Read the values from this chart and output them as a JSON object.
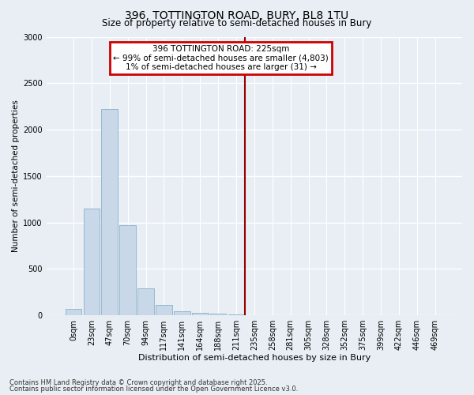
{
  "title1": "396, TOTTINGTON ROAD, BURY, BL8 1TU",
  "title2": "Size of property relative to semi-detached houses in Bury",
  "xlabel": "Distribution of semi-detached houses by size in Bury",
  "ylabel": "Number of semi-detached properties",
  "footnote1": "Contains HM Land Registry data © Crown copyright and database right 2025.",
  "footnote2": "Contains public sector information licensed under the Open Government Licence v3.0.",
  "annotation_title": "396 TOTTINGTON ROAD: 225sqm",
  "annotation_line1": "← 99% of semi-detached houses are smaller (4,803)",
  "annotation_line2": "1% of semi-detached houses are larger (31) →",
  "bar_labels": [
    "0sqm",
    "23sqm",
    "47sqm",
    "70sqm",
    "94sqm",
    "117sqm",
    "141sqm",
    "164sqm",
    "188sqm",
    "211sqm",
    "235sqm",
    "258sqm",
    "281sqm",
    "305sqm",
    "328sqm",
    "352sqm",
    "375sqm",
    "399sqm",
    "422sqm",
    "446sqm",
    "469sqm"
  ],
  "bar_values": [
    70,
    1150,
    2225,
    975,
    290,
    110,
    47,
    30,
    18,
    10,
    0,
    0,
    0,
    0,
    0,
    0,
    0,
    0,
    0,
    0,
    0
  ],
  "bar_color": "#c8d8e8",
  "bar_edge_color": "#8ab0cc",
  "vline_x": 10.0,
  "vline_color": "#990000",
  "ylim": [
    0,
    3000
  ],
  "yticks": [
    0,
    500,
    1000,
    1500,
    2000,
    2500,
    3000
  ],
  "annotation_box_color": "#cc0000",
  "bg_color": "#e8eef4",
  "grid_color": "#ffffff",
  "title_fontsize": 10,
  "subtitle_fontsize": 8.5,
  "annotation_fontsize": 7.5,
  "xlabel_fontsize": 8,
  "ylabel_fontsize": 7.5,
  "tick_fontsize": 7,
  "footnote_fontsize": 6
}
